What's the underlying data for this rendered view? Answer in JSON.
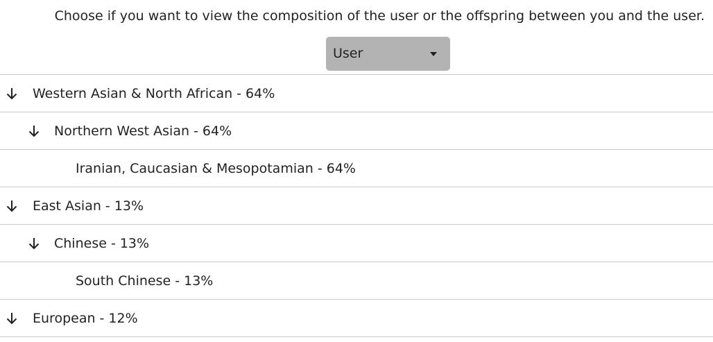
{
  "instruction": "Choose if you want to view the composition of the user or the offspring between you and the user.",
  "view_select": {
    "selected": "User",
    "icon": "caret-down-icon"
  },
  "ancestry_tree": [
    {
      "label": "Western Asian & North African - 64%",
      "level": 0,
      "expanded": true,
      "icon": "arrow-down-icon"
    },
    {
      "label": "Northern West Asian - 64%",
      "level": 1,
      "expanded": true,
      "icon": "arrow-down-icon"
    },
    {
      "label": "Iranian, Caucasian & Mesopotamian - 64%",
      "level": 2
    },
    {
      "label": "East Asian - 13%",
      "level": 0,
      "expanded": true,
      "icon": "arrow-down-icon"
    },
    {
      "label": "Chinese - 13%",
      "level": 1,
      "expanded": true,
      "icon": "arrow-down-icon"
    },
    {
      "label": "South Chinese - 13%",
      "level": 2
    },
    {
      "label": "European - 12%",
      "level": 0,
      "expanded": true,
      "icon": "arrow-down-icon"
    }
  ],
  "colors": {
    "dropdown_bg": "#b3b3b3",
    "divider": "#c8c8c8",
    "text": "#222222"
  }
}
